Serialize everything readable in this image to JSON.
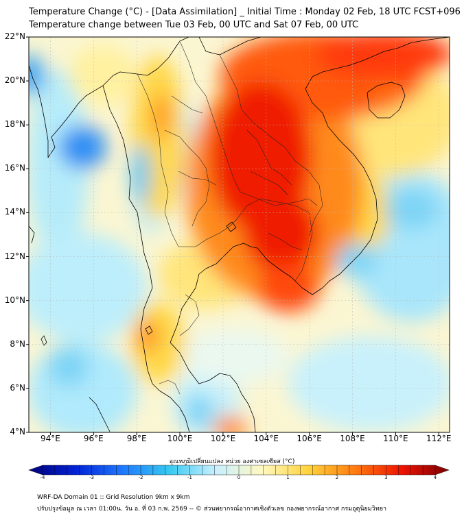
{
  "header": {
    "title_line1": "Temperature Change (°C) - [Data Assimilation] _ Initial Time : Monday 02 Feb, 18 UTC FCST+096",
    "title_line2": "Temperature change between Tue 03 Feb, 00 UTC and Sat 07 Feb, 00 UTC"
  },
  "map": {
    "lat_labels": [
      "22°N",
      "20°N",
      "18°N",
      "16°N",
      "14°N",
      "12°N",
      "10°N",
      "8°N",
      "6°N",
      "4°N"
    ],
    "lon_labels": [
      "94°E",
      "96°E",
      "98°E",
      "100°E",
      "102°E",
      "104°E",
      "106°E",
      "108°E",
      "110°E",
      "112°E"
    ],
    "lat_range": [
      4,
      22
    ],
    "lon_range": [
      93,
      112.5
    ],
    "gridlines": true,
    "field": "temperature change",
    "hotspots": [
      {
        "lon": 103.5,
        "lat": 16.0,
        "value": 3.0
      },
      {
        "lon": 104.5,
        "lat": 13.0,
        "value": 3.0
      },
      {
        "lon": 105.5,
        "lat": 19.5,
        "value": 2.8
      },
      {
        "lon": 107.5,
        "lat": 21.5,
        "value": 2.9
      },
      {
        "lon": 105.5,
        "lat": 10.5,
        "value": 2.5
      },
      {
        "lon": 102.0,
        "lat": 4.2,
        "value": 2.5
      },
      {
        "lon": 109.8,
        "lat": 19.5,
        "value": 2.5
      },
      {
        "lon": 98.5,
        "lat": 8.5,
        "value": 2.2
      },
      {
        "lon": 96.0,
        "lat": 17.0,
        "value": -3.0
      },
      {
        "lon": 93.0,
        "lat": 20.5,
        "value": -2.2
      },
      {
        "lon": 109.0,
        "lat": 11.5,
        "value": -1.8
      },
      {
        "lon": 111.5,
        "lat": 14.5,
        "value": -1.8
      },
      {
        "lon": 96.0,
        "lat": 7.0,
        "value": -1.6
      },
      {
        "lon": 100.5,
        "lat": 5.0,
        "value": -1.6
      }
    ]
  },
  "colorbar": {
    "title": "อุณหภูมิเปลี่ยนแปลง หน่วย องศาเซลเซียส (°C)",
    "ticks": [
      "-4",
      "-3",
      "-2",
      "-1",
      "0",
      "1",
      "2",
      "3",
      "4"
    ],
    "range": [
      -4,
      4
    ],
    "colors": [
      "#00007a",
      "#0022d6",
      "#1f78ff",
      "#37c8f0",
      "#c8f0ff",
      "#fff8c0",
      "#ffd23a",
      "#ff7a10",
      "#ee1100",
      "#7a0000"
    ]
  },
  "footer": {
    "line1": "WRF-DA Domain 01 :: Grid Resolution 9km x 9km",
    "line2": "ปรับปรุงข้อมูล ณ เวลา 01:00น. วัน อ. ที่ 03 ก.พ. 2569 -- © ส่วนพยากรณ์อากาศเชิงตัวเลข กองพยากรณ์อากาศ กรมอุตุนิยมวิทยา"
  }
}
